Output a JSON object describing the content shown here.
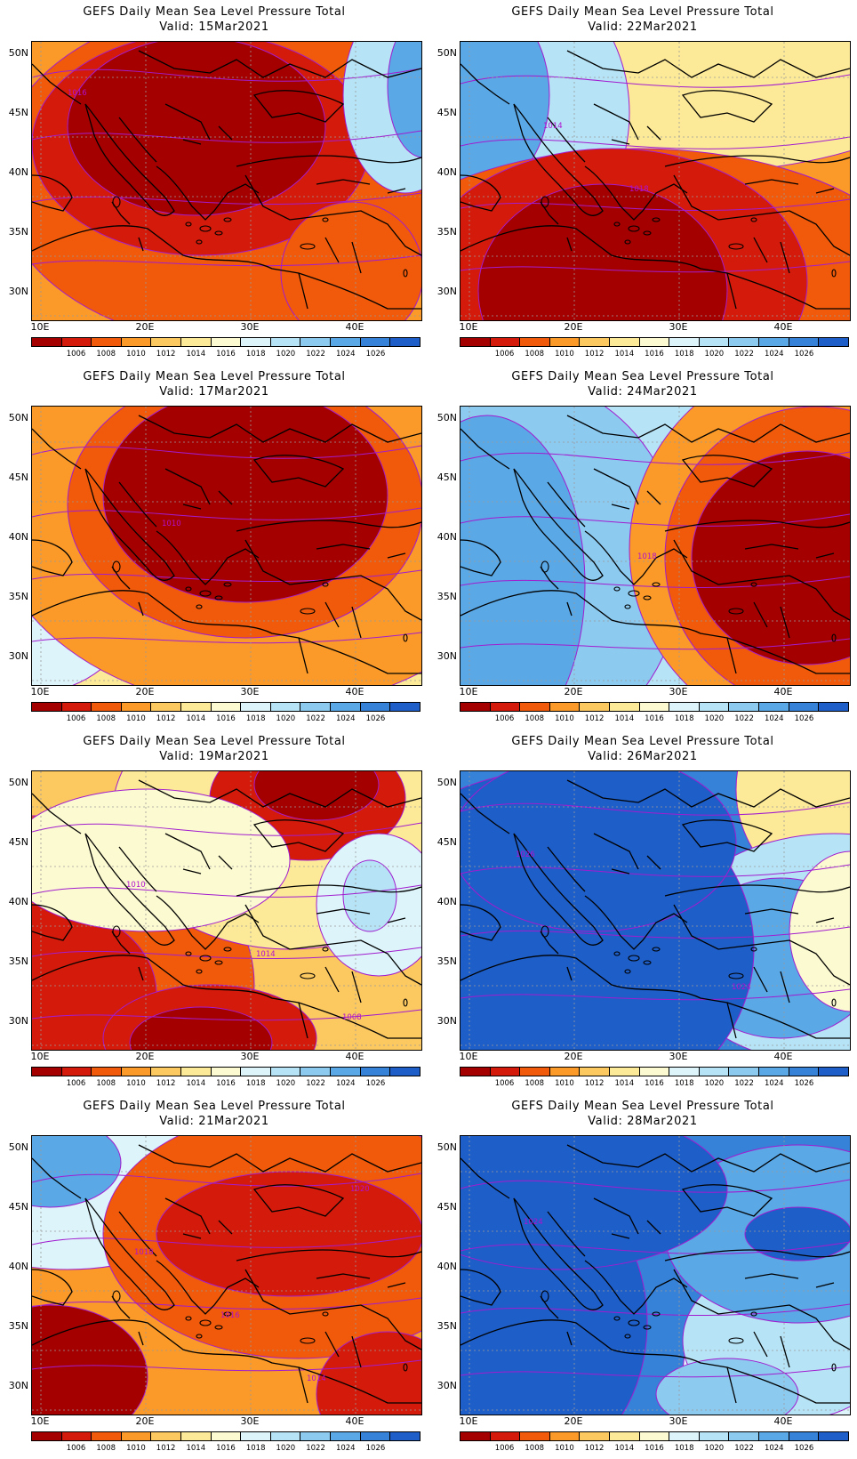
{
  "colorbar": {
    "colors": [
      "#a50000",
      "#d41a0a",
      "#f05a0a",
      "#fb9a28",
      "#fcc860",
      "#fdea98",
      "#fcfad0",
      "#dcf4fa",
      "#b6e4f6",
      "#8ccaf0",
      "#5aa8e6",
      "#3682d8",
      "#1e5ec8"
    ],
    "labels": [
      "1006",
      "1008",
      "1010",
      "1012",
      "1014",
      "1016",
      "1018",
      "1020",
      "1022",
      "1024",
      "1026"
    ]
  },
  "axes": {
    "lat_labels": [
      "50N",
      "45N",
      "40N",
      "35N",
      "30N"
    ],
    "lon_labels": [
      "10E",
      "20E",
      "30E",
      "40E"
    ]
  },
  "panels": [
    {
      "title": "GEFS Daily Mean Sea Level Pressure Total",
      "valid": "Valid: 15Mar2021",
      "contour_labels": [
        "1016"
      ]
    },
    {
      "title": "GEFS Daily Mean Sea Level Pressure Total",
      "valid": "Valid: 22Mar2021",
      "contour_labels": [
        "1014",
        "1018"
      ]
    },
    {
      "title": "GEFS Daily Mean Sea Level Pressure Total",
      "valid": "Valid: 17Mar2021",
      "contour_labels": [
        "1010"
      ]
    },
    {
      "title": "GEFS Daily Mean Sea Level Pressure Total",
      "valid": "Valid: 24Mar2021",
      "contour_labels": [
        "1018"
      ]
    },
    {
      "title": "GEFS Daily Mean Sea Level Pressure Total",
      "valid": "Valid: 19Mar2021",
      "contour_labels": [
        "1014",
        "1008",
        "1010"
      ]
    },
    {
      "title": "GEFS Daily Mean Sea Level Pressure Total",
      "valid": "Valid: 26Mar2021",
      "contour_labels": [
        "1024",
        "1026"
      ]
    },
    {
      "title": "GEFS Daily Mean Sea Level Pressure Total",
      "valid": "Valid: 21Mar2021",
      "contour_labels": [
        "1020",
        "1018",
        "1016",
        "1014"
      ]
    },
    {
      "title": "GEFS Daily Mean Sea Level Pressure Total",
      "valid": "Valid: 28Mar2021",
      "contour_labels": [
        "1024"
      ]
    }
  ]
}
